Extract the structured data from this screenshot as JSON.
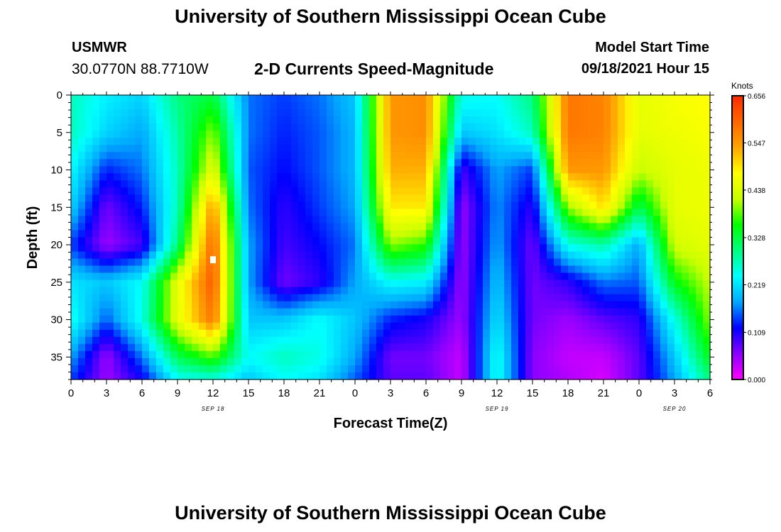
{
  "header": {
    "title": "University of Southern Mississippi Ocean Cube",
    "station": "USMWR",
    "coords": "30.0770N  88.7710W",
    "subtitle": "2-D Currents Speed-Magnitude",
    "model_start_label": "Model Start Time",
    "model_start_value": "09/18/2021 Hour 15"
  },
  "footer": {
    "title": "University of Southern Mississippi Ocean Cube"
  },
  "chart_data": {
    "type": "heatmap",
    "title": "2-D Currents Speed-Magnitude",
    "xlabel": "Forecast Time(Z)",
    "ylabel": "Depth (ft)",
    "x_hours": [
      0,
      3,
      6,
      9,
      12,
      15,
      18,
      21,
      24,
      27,
      30,
      33,
      36,
      39,
      42,
      45,
      48,
      51,
      54
    ],
    "x_ticklabels": [
      "0",
      "3",
      "6",
      "9",
      "12",
      "15",
      "18",
      "21",
      "0",
      "3",
      "6",
      "9",
      "12",
      "15",
      "18",
      "21",
      "0",
      "3",
      "6"
    ],
    "x_range_hours": [
      0,
      54
    ],
    "date_labels": [
      {
        "hour": 12,
        "text": "SEP 18"
      },
      {
        "hour": 36,
        "text": "SEP 19"
      },
      {
        "hour": 51,
        "text": "SEP 20"
      }
    ],
    "y_depths_ft": [
      0,
      5,
      10,
      15,
      20,
      25,
      30,
      35,
      38
    ],
    "y_ticklabels": [
      "0",
      "5",
      "10",
      "15",
      "20",
      "25",
      "30",
      "35"
    ],
    "y_ticks": [
      0,
      5,
      10,
      15,
      20,
      25,
      30,
      35
    ],
    "y_range_ft": [
      0,
      38
    ],
    "speed_knots": [
      [
        0.27,
        0.23,
        0.21,
        0.3,
        0.33,
        0.16,
        0.14,
        0.16,
        0.2,
        0.55,
        0.56,
        0.25,
        0.24,
        0.3,
        0.58,
        0.57,
        0.45,
        0.47,
        0.48
      ],
      [
        0.27,
        0.21,
        0.18,
        0.28,
        0.4,
        0.16,
        0.13,
        0.15,
        0.19,
        0.55,
        0.56,
        0.2,
        0.22,
        0.27,
        0.58,
        0.57,
        0.45,
        0.46,
        0.47
      ],
      [
        0.24,
        0.13,
        0.16,
        0.27,
        0.45,
        0.15,
        0.12,
        0.15,
        0.19,
        0.53,
        0.53,
        0.09,
        0.18,
        0.14,
        0.55,
        0.55,
        0.42,
        0.45,
        0.46
      ],
      [
        0.21,
        0.07,
        0.13,
        0.27,
        0.55,
        0.16,
        0.1,
        0.14,
        0.18,
        0.49,
        0.49,
        0.05,
        0.17,
        0.1,
        0.4,
        0.5,
        0.32,
        0.45,
        0.46
      ],
      [
        0.14,
        0.05,
        0.09,
        0.3,
        0.6,
        0.18,
        0.09,
        0.12,
        0.16,
        0.4,
        0.37,
        0.05,
        0.18,
        0.07,
        0.25,
        0.28,
        0.18,
        0.43,
        0.45
      ],
      [
        0.22,
        0.2,
        0.24,
        0.45,
        0.61,
        0.18,
        0.07,
        0.1,
        0.18,
        0.24,
        0.23,
        0.05,
        0.2,
        0.07,
        0.1,
        0.16,
        0.15,
        0.35,
        0.42
      ],
      [
        0.25,
        0.15,
        0.25,
        0.45,
        0.58,
        0.2,
        0.2,
        0.24,
        0.2,
        0.13,
        0.11,
        0.05,
        0.22,
        0.07,
        0.05,
        0.08,
        0.1,
        0.25,
        0.4
      ],
      [
        0.18,
        0.05,
        0.16,
        0.32,
        0.38,
        0.24,
        0.27,
        0.25,
        0.18,
        0.07,
        0.07,
        0.03,
        0.25,
        0.06,
        0.03,
        0.03,
        0.08,
        0.2,
        0.35
      ],
      [
        0.14,
        0.05,
        0.11,
        0.24,
        0.25,
        0.2,
        0.24,
        0.22,
        0.15,
        0.08,
        0.08,
        0.03,
        0.25,
        0.06,
        0.04,
        0.02,
        0.08,
        0.18,
        0.3
      ]
    ],
    "marker": {
      "hour": 12,
      "depth_ft": 22
    },
    "colorbar": {
      "label": "Knots",
      "tick_values": [
        0.0,
        0.109,
        0.219,
        0.328,
        0.438,
        0.547,
        0.656
      ],
      "tick_labels": [
        "0.000",
        "0.109",
        "0.219",
        "0.328",
        "0.438",
        "0.547",
        "0.656"
      ],
      "min": 0,
      "max": 0.656,
      "colors": [
        "#ff00ff",
        "#8a00ff",
        "#0000ff",
        "#00a8ff",
        "#00ffff",
        "#00ff80",
        "#00ff00",
        "#c8ff00",
        "#ffff00",
        "#ffa500",
        "#ff6600",
        "#ff2a00"
      ]
    }
  }
}
